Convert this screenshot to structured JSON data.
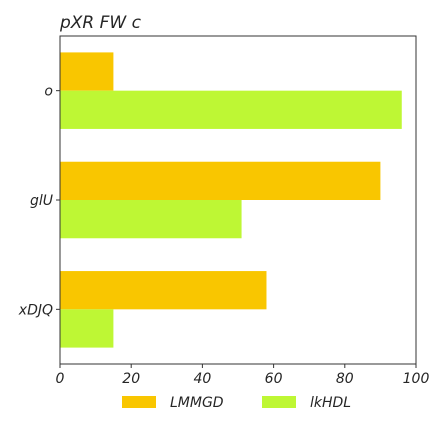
{
  "chart_data": {
    "type": "bar",
    "orientation": "horizontal",
    "title": "pXR FW  c",
    "categories": [
      "o",
      "glU",
      "xDJQ"
    ],
    "series": [
      {
        "name": "LMMGD",
        "color": "#F9C600",
        "values": [
          15,
          90,
          58
        ]
      },
      {
        "name": "lkHDL",
        "color": "#BEF734",
        "values": [
          96,
          51,
          15
        ]
      }
    ],
    "xlim": [
      0,
      100
    ],
    "xticks": [
      0,
      20,
      40,
      60,
      80,
      100
    ],
    "xlabel": "",
    "ylabel": "",
    "grid": false,
    "legend_position": "bottom"
  }
}
